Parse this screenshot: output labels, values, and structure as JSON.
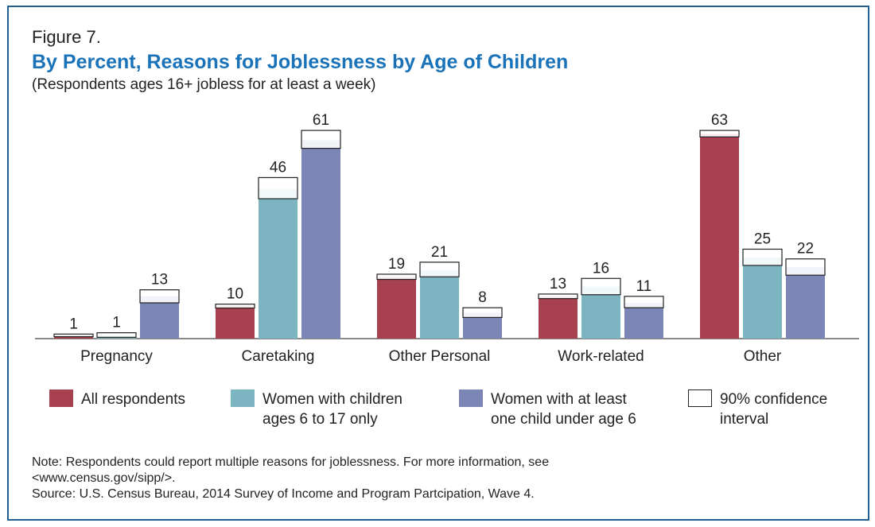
{
  "header": {
    "figure_label": "Figure 7.",
    "title": "By Percent, Reasons for Joblessness by Age of Children",
    "subtitle": "(Respondents ages 16+ jobless for at least a week)"
  },
  "colors": {
    "all_respondents": "#a8414f",
    "women_children_6_17": "#7db4c2",
    "women_child_under_6": "#7b86b6",
    "confidence_interval": "#ffffff",
    "title": "#1a73b8",
    "frame": "#1f5f93"
  },
  "chart_data": {
    "type": "bar",
    "categories": [
      "Pregnancy",
      "Caretaking",
      "Other Personal",
      "Work-related",
      "Other"
    ],
    "series": [
      {
        "name": "All respondents",
        "values": [
          1,
          10,
          19,
          13,
          63
        ],
        "ci_low": [
          0.6,
          9.4,
          18.2,
          12.3,
          62.0
        ],
        "ci_high": [
          1.4,
          10.6,
          19.8,
          13.7,
          64.0
        ]
      },
      {
        "name": "Women with children ages 6 to 17 only",
        "values": [
          1,
          46,
          21,
          16,
          25
        ],
        "ci_low": [
          0.4,
          43.0,
          19.0,
          13.5,
          22.5
        ],
        "ci_high": [
          1.8,
          49.5,
          23.5,
          18.5,
          27.5
        ]
      },
      {
        "name": "Women with at least one child under age 6",
        "values": [
          13,
          61,
          8,
          11,
          22
        ],
        "ci_low": [
          11.0,
          58.5,
          6.5,
          9.5,
          19.5
        ],
        "ci_high": [
          15.0,
          64.0,
          9.5,
          13.0,
          24.5
        ]
      }
    ],
    "ylim": [
      0,
      65
    ],
    "grid": false,
    "data_labels": true,
    "legend_position": "bottom"
  },
  "legend": [
    {
      "key": "all_respondents",
      "lines": [
        "All respondents"
      ]
    },
    {
      "key": "women_children_6_17",
      "lines": [
        "Women with children",
        "ages 6 to 17 only"
      ]
    },
    {
      "key": "women_child_under_6",
      "lines": [
        "Women with at least",
        "one child under age 6"
      ]
    },
    {
      "key": "confidence_interval",
      "lines": [
        "90% confidence",
        "interval"
      ]
    }
  ],
  "notes": {
    "line1": "Note: Respondents could report multiple reasons for joblessness. For more information, see",
    "line2": "<www.census.gov/sipp/>.",
    "line3": "Source: U.S. Census Bureau, 2014 Survey of Income and Program Partcipation, Wave 4."
  }
}
